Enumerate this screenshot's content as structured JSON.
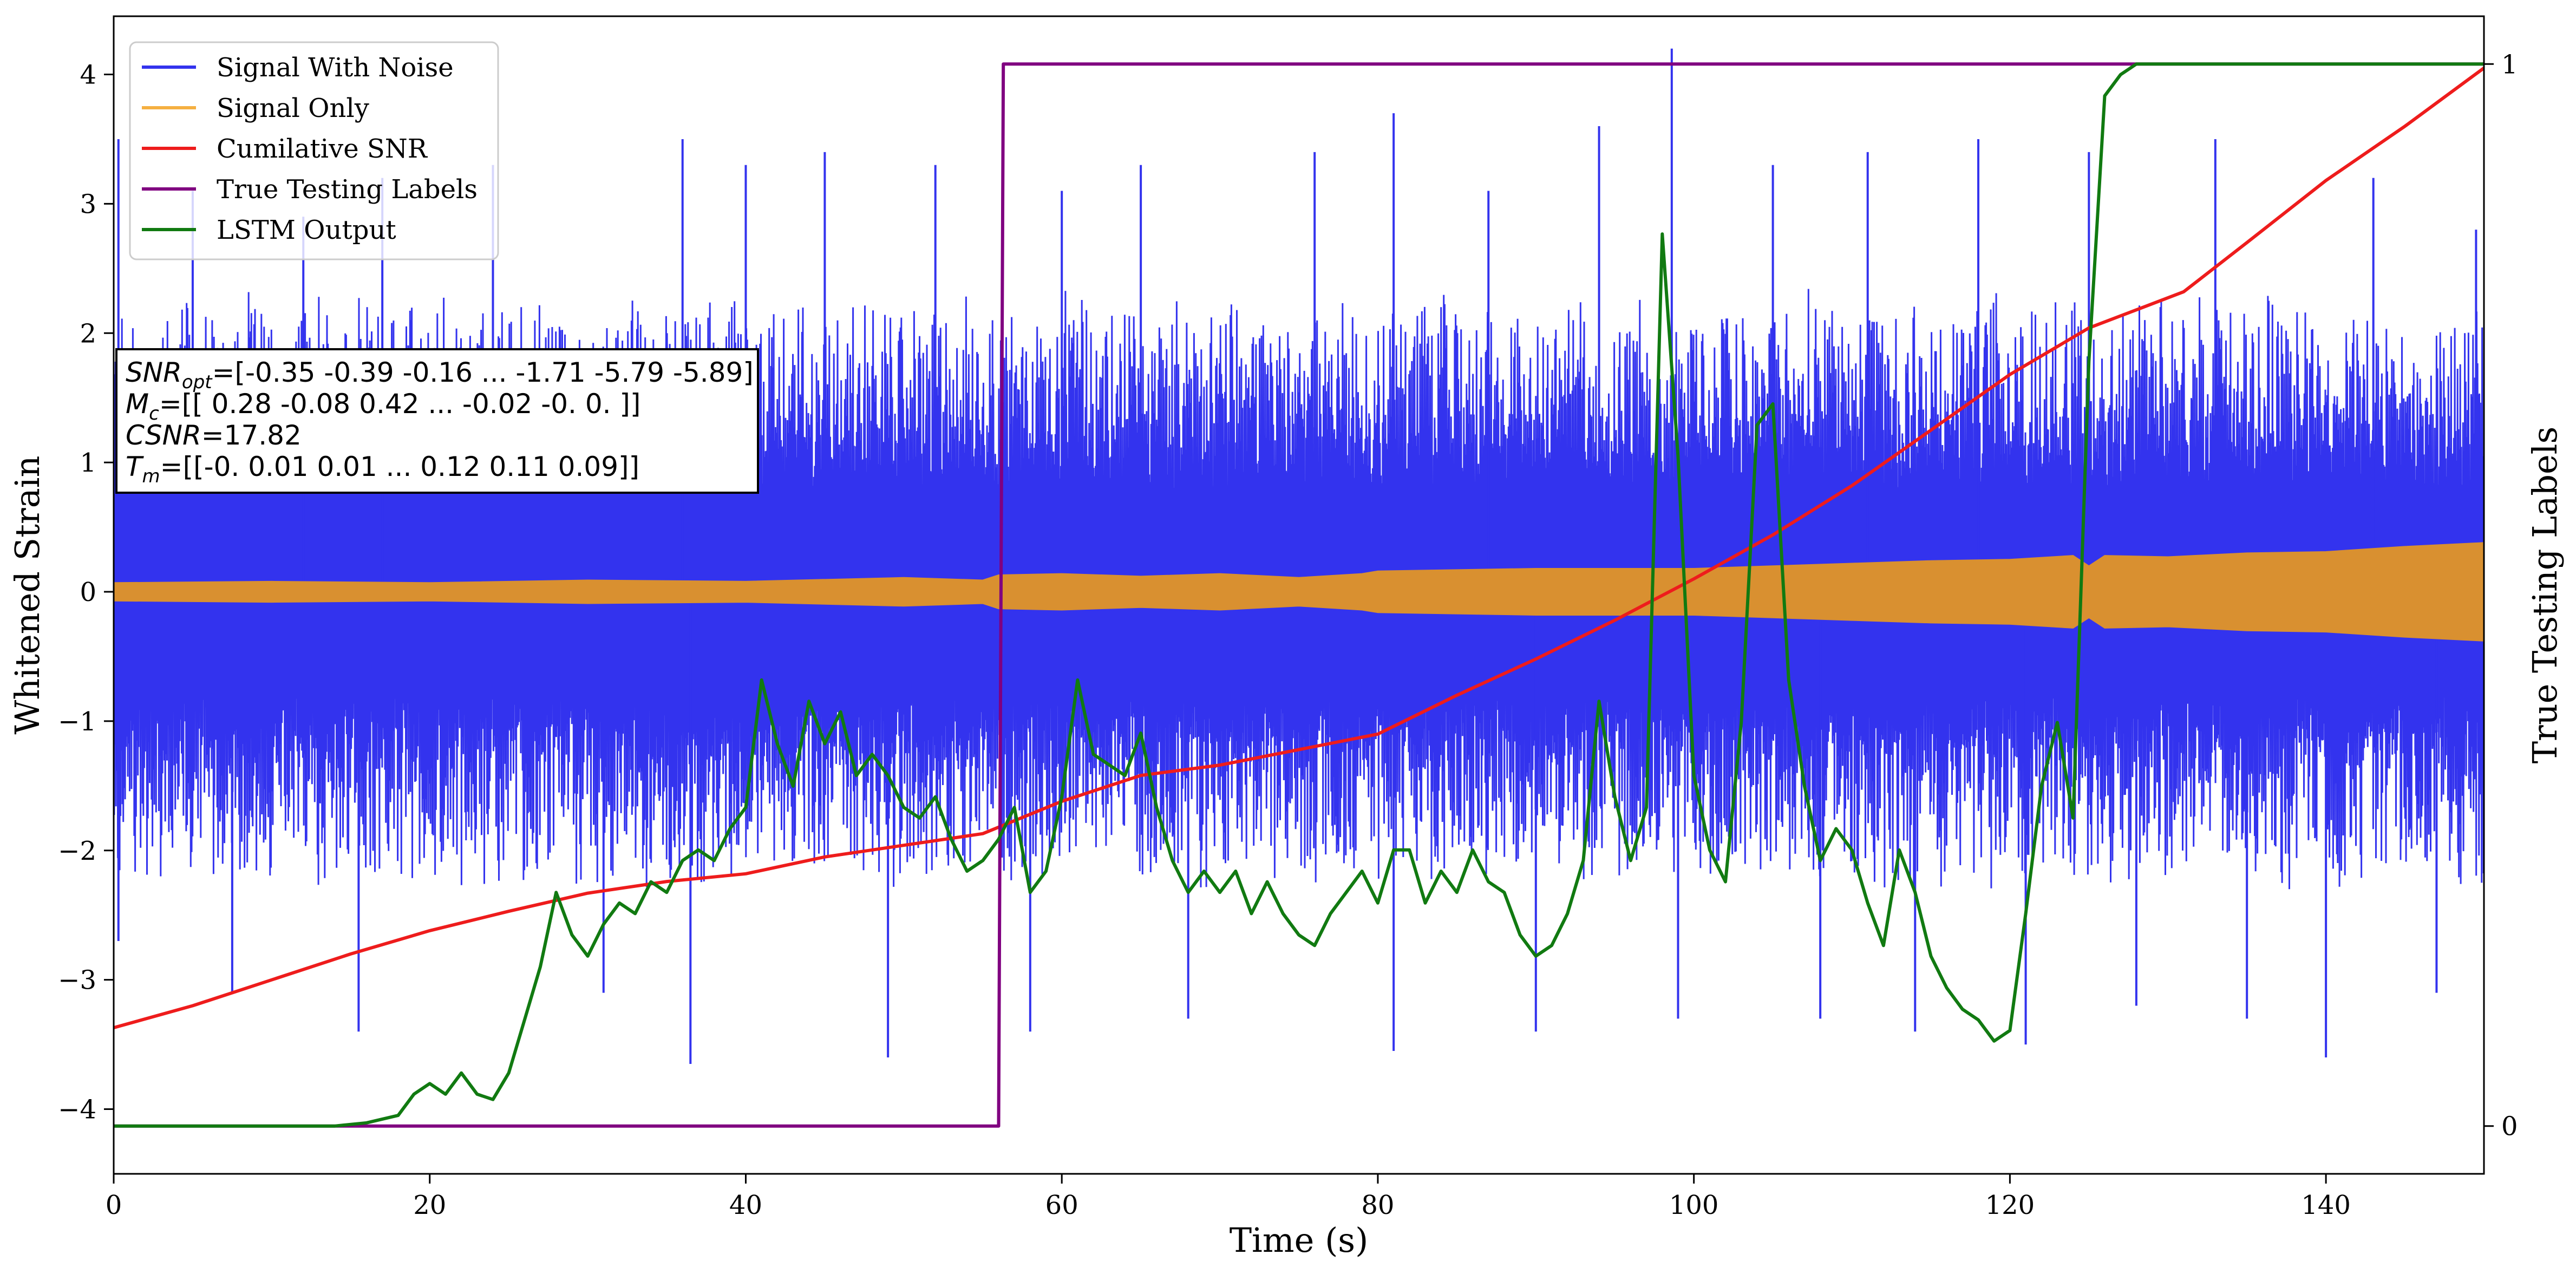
{
  "chart_data": {
    "type": "line",
    "xlabel": "Time (s)",
    "ylabel": "Whitened Strain",
    "ylabel_right": "True Testing Labels",
    "xlim": [
      0,
      150
    ],
    "ylim": [
      -4.5,
      4.45
    ],
    "ylim_right": [
      -0.045,
      1.045
    ],
    "x_ticks": [
      0,
      20,
      40,
      60,
      80,
      100,
      120,
      140
    ],
    "y_ticks": [
      -4,
      -3,
      -2,
      -1,
      0,
      1,
      2,
      3,
      4
    ],
    "y_ticks_right": [
      0,
      1
    ],
    "grid": false,
    "legend_position": "upper-left",
    "legend": [
      {
        "label": "Signal With Noise",
        "color": "#3333ee"
      },
      {
        "label": "Signal Only",
        "color": "#f5b041"
      },
      {
        "label": "Cumilative SNR",
        "color": "#ee1c1c"
      },
      {
        "label": "True Testing Labels",
        "color": "#800080"
      },
      {
        "label": "LSTM Output",
        "color": "#117a11"
      }
    ],
    "annotation": {
      "line1_sym": "SNR",
      "line1_sub": "opt",
      "line1_val": "=[-0.35 -0.39 -0.16 ... -1.71 -5.79 -5.89]",
      "line2_sym": "M",
      "line2_sub": "c",
      "line2_val": "=[[ 0.28 -0.08  0.42 ... -0.02 -0.    0.  ]]",
      "line3_sym": "CSNR",
      "line3_val": "=17.82",
      "line4_sym": "T",
      "line4_sub": "m",
      "line4_val": "=[[-0.    0.01  0.01 ...  0.12  0.11  0.09]]"
    },
    "series": [
      {
        "name": "Signal With Noise",
        "axis": "left",
        "color": "#3333ee",
        "style": "dense noise band",
        "band_inner": 0.8,
        "band_outer": 2.0,
        "spike_peaks": [
          [
            0.3,
            3.5
          ],
          [
            0.3,
            -2.7
          ],
          [
            5,
            3.1
          ],
          [
            7.5,
            -3.1
          ],
          [
            12,
            2.9
          ],
          [
            15.5,
            -3.4
          ],
          [
            17,
            3.2
          ],
          [
            24,
            3.3
          ],
          [
            31,
            -3.1
          ],
          [
            36,
            3.5
          ],
          [
            36.5,
            -3.65
          ],
          [
            40,
            3.3
          ],
          [
            45,
            3.4
          ],
          [
            49,
            -3.6
          ],
          [
            52,
            3.3
          ],
          [
            58,
            -3.4
          ],
          [
            60,
            3.1
          ],
          [
            65,
            3.3
          ],
          [
            68,
            -3.3
          ],
          [
            76,
            3.4
          ],
          [
            81,
            3.7
          ],
          [
            81,
            -3.55
          ],
          [
            87,
            3.1
          ],
          [
            90,
            -3.4
          ],
          [
            94,
            3.6
          ],
          [
            98.6,
            4.2
          ],
          [
            99,
            -3.3
          ],
          [
            105,
            3.3
          ],
          [
            108,
            -3.3
          ],
          [
            111,
            3.4
          ],
          [
            114,
            -3.4
          ],
          [
            118,
            3.5
          ],
          [
            121,
            -3.5
          ],
          [
            125,
            3.4
          ],
          [
            128,
            -3.2
          ],
          [
            133,
            3.5
          ],
          [
            135,
            -3.3
          ],
          [
            140,
            -3.6
          ],
          [
            143,
            3.2
          ],
          [
            147,
            -3.1
          ],
          [
            149.5,
            2.8
          ]
        ]
      },
      {
        "name": "Signal Only",
        "axis": "left",
        "color": "#d99030",
        "style": "envelope",
        "x": [
          0,
          10,
          20,
          30,
          40,
          50,
          55,
          56,
          60,
          65,
          70,
          75,
          79,
          80,
          85,
          90,
          95,
          100,
          105,
          110,
          115,
          120,
          124,
          125,
          126,
          130,
          135,
          140,
          145,
          150
        ],
        "amplitude": [
          0.07,
          0.08,
          0.07,
          0.09,
          0.08,
          0.11,
          0.09,
          0.13,
          0.14,
          0.12,
          0.14,
          0.11,
          0.14,
          0.16,
          0.17,
          0.18,
          0.18,
          0.18,
          0.2,
          0.22,
          0.24,
          0.25,
          0.28,
          0.2,
          0.28,
          0.27,
          0.3,
          0.31,
          0.35,
          0.38
        ]
      },
      {
        "name": "Cumilative SNR",
        "axis": "left",
        "color": "#ee1c1c",
        "x": [
          0,
          5,
          10,
          15,
          20,
          25,
          30,
          35,
          40,
          45,
          50,
          55,
          60,
          65,
          70,
          75,
          80,
          85,
          90,
          95,
          100,
          105,
          110,
          115,
          120,
          125,
          128,
          131,
          135,
          140,
          145,
          150
        ],
        "y": [
          -3.37,
          -3.2,
          -3.0,
          -2.8,
          -2.62,
          -2.47,
          -2.33,
          -2.24,
          -2.18,
          -2.05,
          -1.96,
          -1.87,
          -1.62,
          -1.42,
          -1.34,
          -1.22,
          -1.1,
          -0.8,
          -0.52,
          -0.22,
          0.1,
          0.44,
          0.82,
          1.25,
          1.68,
          2.04,
          2.18,
          2.32,
          2.7,
          3.18,
          3.6,
          4.05
        ]
      },
      {
        "name": "True Testing Labels",
        "axis": "right",
        "color": "#800080",
        "x": [
          0,
          56,
          56.3,
          150
        ],
        "y": [
          0,
          0,
          1,
          1
        ]
      },
      {
        "name": "LSTM Output",
        "axis": "right",
        "color": "#117a11",
        "x": [
          0,
          14,
          16,
          18,
          19,
          20,
          21,
          22,
          23,
          24,
          25,
          26,
          27,
          28,
          29,
          30,
          31,
          32,
          33,
          34,
          35,
          36,
          37,
          38,
          39,
          40,
          41,
          42,
          43,
          44,
          45,
          46,
          47,
          48,
          49,
          50,
          51,
          52,
          53,
          54,
          55,
          56,
          57,
          58,
          59,
          60,
          61,
          62,
          63,
          64,
          65,
          66,
          67,
          68,
          69,
          70,
          71,
          72,
          73,
          74,
          75,
          76,
          77,
          78,
          79,
          80,
          81,
          82,
          83,
          84,
          85,
          86,
          87,
          88,
          89,
          90,
          91,
          92,
          93,
          94,
          95,
          96,
          97,
          98,
          99,
          100,
          101,
          102,
          103,
          104,
          105,
          106,
          107,
          108,
          109,
          110,
          111,
          112,
          113,
          114,
          115,
          116,
          117,
          118,
          119,
          120,
          121,
          122,
          123,
          124,
          125,
          126,
          127,
          128,
          130,
          150
        ],
        "y": [
          0.0,
          0.0,
          0.003,
          0.01,
          0.03,
          0.04,
          0.03,
          0.05,
          0.03,
          0.025,
          0.05,
          0.1,
          0.15,
          0.22,
          0.18,
          0.16,
          0.19,
          0.21,
          0.2,
          0.23,
          0.22,
          0.25,
          0.26,
          0.25,
          0.28,
          0.3,
          0.42,
          0.36,
          0.32,
          0.4,
          0.36,
          0.39,
          0.33,
          0.35,
          0.33,
          0.3,
          0.29,
          0.31,
          0.27,
          0.24,
          0.25,
          0.27,
          0.3,
          0.22,
          0.24,
          0.31,
          0.42,
          0.35,
          0.34,
          0.33,
          0.37,
          0.3,
          0.25,
          0.22,
          0.24,
          0.22,
          0.24,
          0.2,
          0.23,
          0.2,
          0.18,
          0.17,
          0.2,
          0.22,
          0.24,
          0.21,
          0.26,
          0.26,
          0.21,
          0.24,
          0.22,
          0.26,
          0.23,
          0.22,
          0.18,
          0.16,
          0.17,
          0.2,
          0.25,
          0.4,
          0.31,
          0.25,
          0.3,
          0.84,
          0.63,
          0.33,
          0.26,
          0.23,
          0.38,
          0.66,
          0.68,
          0.42,
          0.32,
          0.25,
          0.28,
          0.26,
          0.21,
          0.17,
          0.26,
          0.22,
          0.16,
          0.13,
          0.11,
          0.1,
          0.08,
          0.09,
          0.2,
          0.32,
          0.38,
          0.29,
          0.72,
          0.97,
          0.99,
          1.0,
          1.0,
          1.0
        ]
      }
    ]
  }
}
